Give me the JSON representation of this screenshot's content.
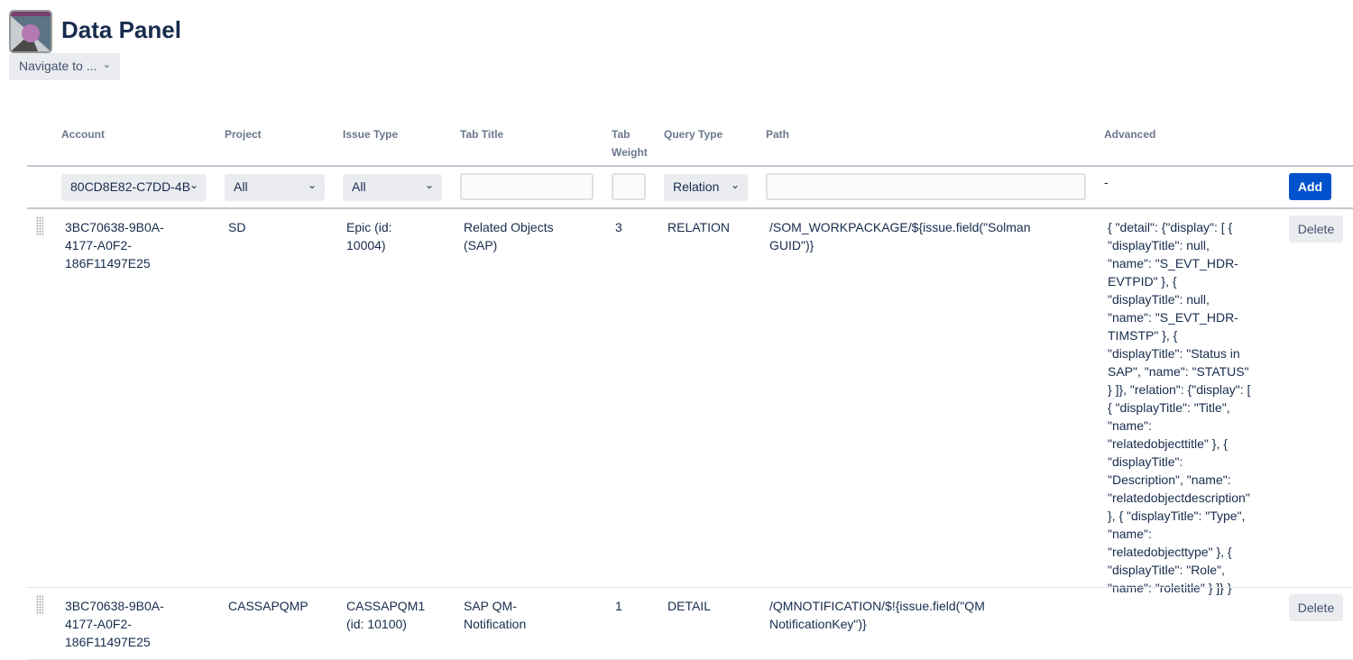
{
  "header": {
    "title": "Data Panel",
    "nav_label": "Navigate to ..."
  },
  "columns": {
    "account": "Account",
    "project": "Project",
    "issue_type": "Issue Type",
    "tab_title": "Tab Title",
    "tab_weight": "Tab Weight",
    "query_type": "Query Type",
    "path": "Path",
    "advanced": "Advanced"
  },
  "filter": {
    "account": "80CD8E82-C7DD-4B",
    "project": "All",
    "issue_type": "All",
    "tab_title": "",
    "tab_weight": "",
    "query_type": "Relation",
    "path": "",
    "advanced": "-",
    "add_label": "Add"
  },
  "rows": [
    {
      "account": "3BC70638-9B0A-4177-A0F2-186F11497E25",
      "project": "SD",
      "issue_type": "Epic (id: 10004)",
      "tab_title": "Related Objects (SAP)",
      "tab_weight": "3",
      "query_type": "RELATION",
      "path": "/SOM_WORKPACKAGE/${issue.field(\"Solman GUID\")}",
      "advanced": "{ \"detail\": {\"display\": [ { \"displayTitle\": null, \"name\": \"S_EVT_HDR-EVTPID\" }, { \"displayTitle\": null, \"name\": \"S_EVT_HDR-TIMSTP\" }, { \"displayTitle\": \"Status in SAP\", \"name\": \"STATUS\" } ]}, \"relation\": {\"display\": [ { \"displayTitle\": \"Title\", \"name\": \"relatedobjecttitle\" }, { \"displayTitle\": \"Description\", \"name\": \"relatedobjectdescription\" }, { \"displayTitle\": \"Type\", \"name\": \"relatedobjecttype\" }, { \"displayTitle\": \"Role\", \"name\": \"roletitle\" } ]} }",
      "delete_label": "Delete"
    },
    {
      "account": "3BC70638-9B0A-4177-A0F2-186F11497E25",
      "project": "CASSAPQMP",
      "issue_type": "CASSAPQM1 (id: 10100)",
      "tab_title": "SAP QM-Notification",
      "tab_weight": "1",
      "query_type": "DETAIL",
      "path": "/QMNOTIFICATION/$!{issue.field(\"QM NotificationKey\")}",
      "advanced": "",
      "delete_label": "Delete"
    }
  ]
}
